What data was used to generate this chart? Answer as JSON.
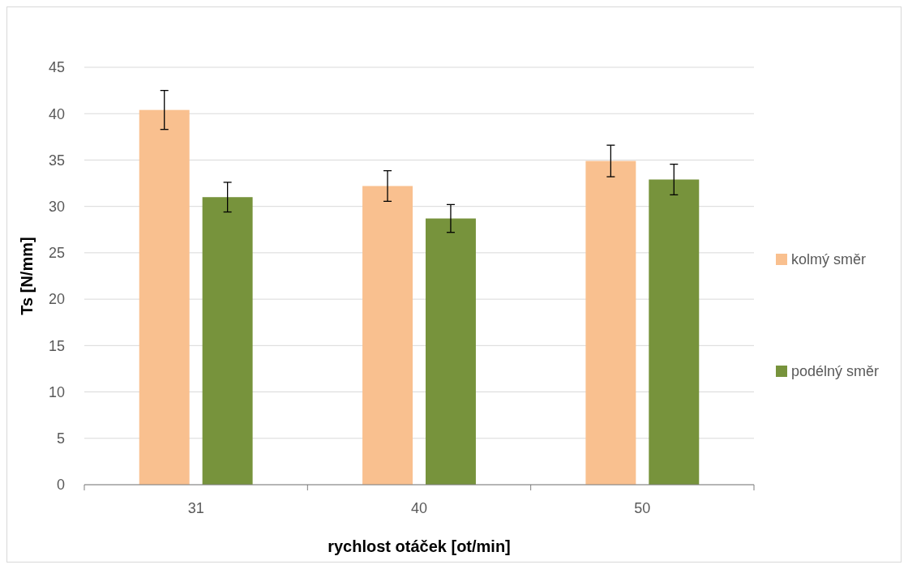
{
  "chart_data": {
    "type": "bar",
    "xlabel": "rychlost otáček [ot/min]",
    "ylabel": "Ts [N/mm]",
    "categories": [
      "31",
      "40",
      "50"
    ],
    "series": [
      {
        "name": "kolmý směr",
        "color": "#f9c08f",
        "values": [
          40.4,
          32.2,
          34.9
        ],
        "errors": [
          2.1,
          1.65,
          1.7
        ]
      },
      {
        "name": "podélný směr",
        "color": "#77933c",
        "values": [
          31.0,
          28.7,
          32.9
        ],
        "errors": [
          1.6,
          1.5,
          1.65
        ]
      }
    ],
    "ylim": [
      0,
      45
    ],
    "yticks": [
      0,
      5,
      10,
      15,
      20,
      25,
      30,
      35,
      40,
      45
    ],
    "grid": "y",
    "legend": "right"
  }
}
